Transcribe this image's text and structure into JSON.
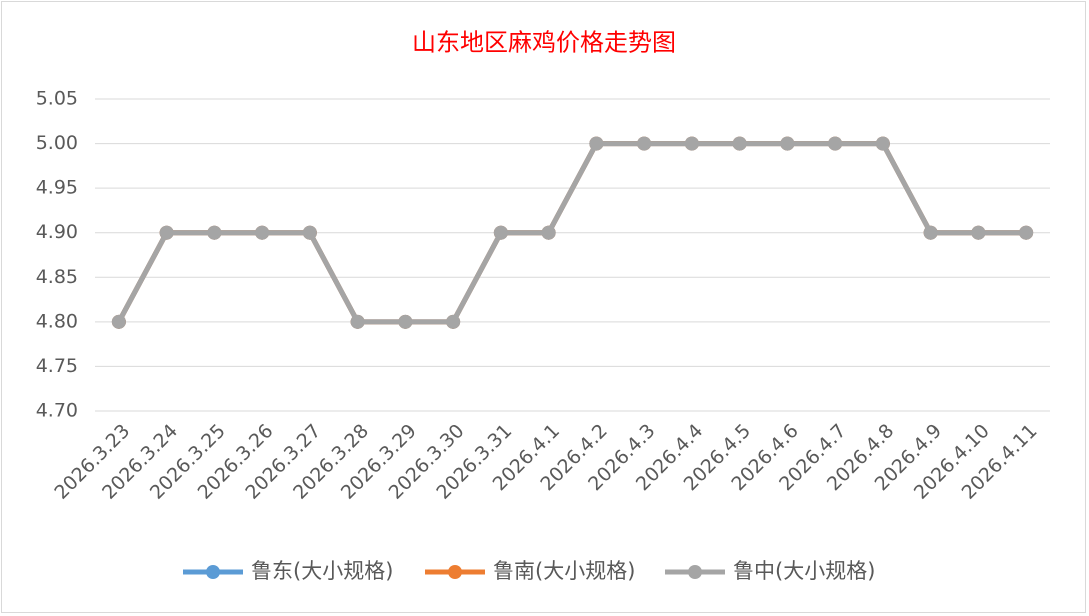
{
  "chart_data": {
    "type": "line",
    "title": "山东地区麻鸡价格走势图",
    "categories": [
      "2026.3.23",
      "2026.3.24",
      "2026.3.25",
      "2026.3.26",
      "2026.3.27",
      "2026.3.28",
      "2026.3.29",
      "2026.3.30",
      "2026.3.31",
      "2026.4.1",
      "2026.4.2",
      "2026.4.3",
      "2026.4.4",
      "2026.4.5",
      "2026.4.6",
      "2026.4.7",
      "2026.4.8",
      "2026.4.9",
      "2026.4.10",
      "2026.4.11"
    ],
    "series": [
      {
        "name": "鲁东(大小规格)",
        "color": "#5b9bd5",
        "values": [
          4.8,
          4.9,
          4.9,
          4.9,
          4.9,
          4.8,
          4.8,
          4.8,
          4.9,
          4.9,
          5.0,
          5.0,
          5.0,
          5.0,
          5.0,
          5.0,
          5.0,
          4.9,
          4.9,
          4.9
        ]
      },
      {
        "name": "鲁南(大小规格)",
        "color": "#ed7d31",
        "values": [
          4.8,
          4.9,
          4.9,
          4.9,
          4.9,
          4.8,
          4.8,
          4.8,
          4.9,
          4.9,
          5.0,
          5.0,
          5.0,
          5.0,
          5.0,
          5.0,
          5.0,
          4.9,
          4.9,
          4.9
        ]
      },
      {
        "name": "鲁中(大小规格)",
        "color": "#a5a5a5",
        "values": [
          4.8,
          4.9,
          4.9,
          4.9,
          4.9,
          4.8,
          4.8,
          4.8,
          4.9,
          4.9,
          5.0,
          5.0,
          5.0,
          5.0,
          5.0,
          5.0,
          5.0,
          4.9,
          4.9,
          4.9
        ]
      }
    ],
    "ylim": [
      4.7,
      5.05
    ],
    "yticks": [
      {
        "value": 4.7,
        "label": "4.70"
      },
      4.75,
      {
        "value": 4.8,
        "label": "4.80"
      },
      4.85,
      {
        "value": 4.9,
        "label": "4.90"
      },
      4.95,
      {
        "value": 5.0,
        "label": "5.00"
      },
      5.05
    ],
    "grid": true,
    "legend": "bottom"
  }
}
